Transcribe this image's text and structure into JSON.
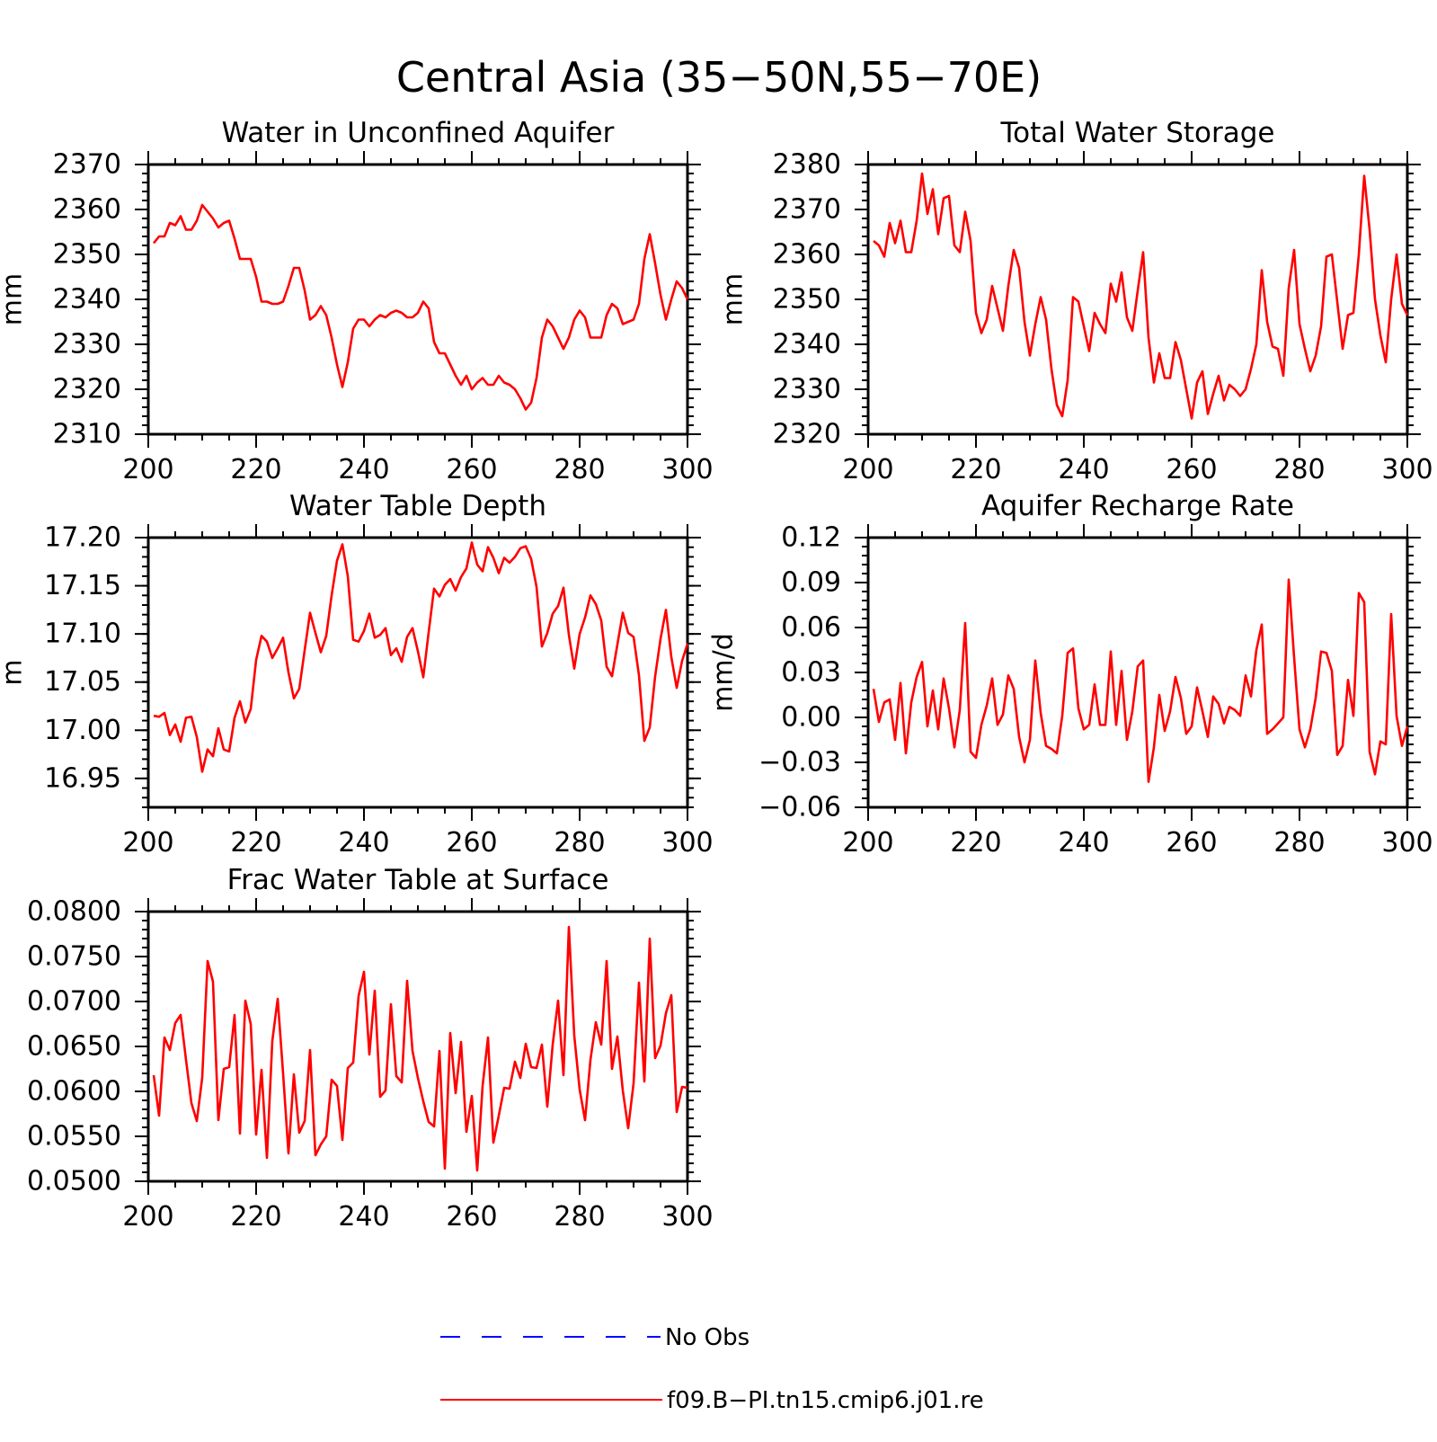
{
  "title": "Central Asia (35−50N,55−70E)",
  "legend": {
    "items": [
      {
        "label": "No Obs",
        "color": "#0000ff",
        "style": "dashed"
      },
      {
        "label": "f09.B−PI.tn15.cmip6.j01.re",
        "color": "#ff0000",
        "style": "solid"
      }
    ]
  },
  "colors": {
    "series": "#ff0000",
    "axes": "#000000",
    "no_obs": "#0000ff"
  },
  "chart_data": [
    {
      "type": "line",
      "title": "Water in Unconfined Aquifer",
      "xlabel": "",
      "ylabel": "mm",
      "xlim": [
        200,
        300
      ],
      "ylim": [
        2310,
        2370
      ],
      "xticks": [
        200,
        220,
        240,
        260,
        280,
        300
      ],
      "xtick_labels": [
        "200",
        "220",
        "240",
        "260",
        "280",
        "300"
      ],
      "yticks": [
        2310,
        2320,
        2330,
        2340,
        2350,
        2360,
        2370
      ],
      "ytick_labels": [
        "2310",
        "2320",
        "2330",
        "2340",
        "2350",
        "2360",
        "2370"
      ],
      "x_start": 201,
      "series": [
        {
          "name": "f09.B−PI.tn15.cmip6.j01.re",
          "values": [
            2352.5,
            2354,
            2354,
            2357,
            2356.5,
            2358.5,
            2355.5,
            2355.5,
            2357.5,
            2361,
            2359.5,
            2358,
            2356,
            2357,
            2357.5,
            2353.5,
            2349,
            2349,
            2349,
            2345,
            2339.5,
            2339.5,
            2339,
            2339,
            2339.5,
            2343,
            2347,
            2347,
            2342,
            2335.5,
            2336.5,
            2338.5,
            2336.5,
            2331.5,
            2325.5,
            2320.5,
            2326,
            2333.5,
            2335.5,
            2335.5,
            2334,
            2335.5,
            2336.5,
            2336,
            2337,
            2337.5,
            2337,
            2336,
            2336,
            2337,
            2339.5,
            2338,
            2330.5,
            2328,
            2328,
            2325.5,
            2323,
            2321,
            2323,
            2320,
            2321.5,
            2322.5,
            2321,
            2321,
            2323,
            2321.5,
            2321,
            2320,
            2318,
            2315.5,
            2317,
            2322.5,
            2331.5,
            2335.5,
            2334,
            2331.5,
            2329,
            2331.5,
            2335.5,
            2337.5,
            2336,
            2331.5,
            2331.5,
            2331.5,
            2336.5,
            2339,
            2338,
            2334.5,
            2335,
            2335.5,
            2339,
            2349,
            2354.5,
            2348,
            2341,
            2335.5,
            2340,
            2344,
            2342.5,
            2340
          ]
        }
      ]
    },
    {
      "type": "line",
      "title": "Total Water Storage",
      "xlabel": "",
      "ylabel": "mm",
      "xlim": [
        200,
        300
      ],
      "ylim": [
        2320,
        2380
      ],
      "xticks": [
        200,
        220,
        240,
        260,
        280,
        300
      ],
      "xtick_labels": [
        "200",
        "220",
        "240",
        "260",
        "280",
        "300"
      ],
      "yticks": [
        2320,
        2330,
        2340,
        2350,
        2360,
        2370,
        2380
      ],
      "ytick_labels": [
        "2320",
        "2330",
        "2340",
        "2350",
        "2360",
        "2370",
        "2380"
      ],
      "x_start": 201,
      "series": [
        {
          "name": "f09.B−PI.tn15.cmip6.j01.re",
          "values": [
            2363,
            2362,
            2359.5,
            2367,
            2362.5,
            2367.5,
            2360.5,
            2360.5,
            2367.5,
            2378,
            2369,
            2374.5,
            2364.5,
            2372.5,
            2373,
            2362,
            2360.5,
            2369.5,
            2363,
            2347,
            2342.5,
            2345.5,
            2353,
            2348,
            2343,
            2353,
            2361,
            2357,
            2345,
            2337.5,
            2344.5,
            2350.5,
            2345.5,
            2334.5,
            2326.5,
            2324,
            2332,
            2350.5,
            2349.5,
            2344,
            2338.5,
            2347,
            2344.5,
            2342.5,
            2353.5,
            2349.5,
            2356,
            2346,
            2343,
            2352,
            2360.5,
            2341.5,
            2331.5,
            2338,
            2332.5,
            2332.5,
            2340.5,
            2336.5,
            2330,
            2323.5,
            2331.5,
            2334,
            2324.5,
            2329,
            2333,
            2327.5,
            2331,
            2330,
            2328.5,
            2330,
            2334.5,
            2340,
            2356.5,
            2345,
            2339.5,
            2339,
            2333,
            2352.5,
            2361,
            2344.5,
            2339,
            2334,
            2337.5,
            2344,
            2359.5,
            2360,
            2349.5,
            2339,
            2346.5,
            2347,
            2360,
            2377.5,
            2365.5,
            2350,
            2342,
            2336,
            2350,
            2360,
            2349,
            2346.5
          ]
        }
      ]
    },
    {
      "type": "line",
      "title": "Water Table Depth",
      "xlabel": "",
      "ylabel": "m",
      "xlim": [
        200,
        300
      ],
      "ylim": [
        16.92,
        17.2
      ],
      "xticks": [
        200,
        220,
        240,
        260,
        280,
        300
      ],
      "xtick_labels": [
        "200",
        "220",
        "240",
        "260",
        "280",
        "300"
      ],
      "yticks": [
        16.95,
        17.0,
        17.05,
        17.1,
        17.15,
        17.2
      ],
      "ytick_labels": [
        "16.95",
        "17.00",
        "17.05",
        "17.10",
        "17.15",
        "17.20"
      ],
      "x_start": 201,
      "series": [
        {
          "name": "f09.B−PI.tn15.cmip6.j01.re",
          "values": [
            17.015,
            17.014,
            17.018,
            16.995,
            17.006,
            16.988,
            17.013,
            17.014,
            16.993,
            16.957,
            16.98,
            16.973,
            17.002,
            16.98,
            16.978,
            17.013,
            17.03,
            17.008,
            17.022,
            17.073,
            17.098,
            17.092,
            17.075,
            17.085,
            17.096,
            17.06,
            17.033,
            17.043,
            17.083,
            17.122,
            17.101,
            17.081,
            17.098,
            17.14,
            17.176,
            17.193,
            17.16,
            17.094,
            17.092,
            17.103,
            17.121,
            17.096,
            17.099,
            17.106,
            17.078,
            17.085,
            17.071,
            17.097,
            17.106,
            17.082,
            17.055,
            17.102,
            17.147,
            17.139,
            17.151,
            17.157,
            17.145,
            17.159,
            17.168,
            17.195,
            17.172,
            17.165,
            17.19,
            17.179,
            17.163,
            17.179,
            17.174,
            17.18,
            17.189,
            17.191,
            17.178,
            17.149,
            17.087,
            17.101,
            17.121,
            17.129,
            17.148,
            17.099,
            17.064,
            17.1,
            17.117,
            17.14,
            17.131,
            17.114,
            17.066,
            17.056,
            17.089,
            17.122,
            17.101,
            17.097,
            17.057,
            16.989,
            17.003,
            17.056,
            17.095,
            17.125,
            17.076,
            17.044,
            17.072,
            17.09
          ]
        }
      ]
    },
    {
      "type": "line",
      "title": "Aquifer Recharge Rate",
      "xlabel": "",
      "ylabel": "mm/d",
      "xlim": [
        200,
        300
      ],
      "ylim": [
        -0.06,
        0.12
      ],
      "xticks": [
        200,
        220,
        240,
        260,
        280,
        300
      ],
      "xtick_labels": [
        "200",
        "220",
        "240",
        "260",
        "280",
        "300"
      ],
      "yticks": [
        -0.06,
        -0.03,
        0.0,
        0.03,
        0.06,
        0.09,
        0.12
      ],
      "ytick_labels": [
        "−0.06",
        "−0.03",
        "0.00",
        "0.03",
        "0.06",
        "0.09",
        "0.12"
      ],
      "x_start": 201,
      "series": [
        {
          "name": "f09.B−PI.tn15.cmip6.j01.re",
          "values": [
            0.019,
            -0.003,
            0.01,
            0.012,
            -0.015,
            0.023,
            -0.024,
            0.01,
            0.027,
            0.037,
            -0.006,
            0.018,
            -0.008,
            0.026,
            0.006,
            -0.02,
            0.005,
            0.063,
            -0.023,
            -0.027,
            -0.005,
            0.008,
            0.026,
            -0.005,
            0.002,
            0.028,
            0.019,
            -0.013,
            -0.03,
            -0.015,
            0.038,
            0.003,
            -0.019,
            -0.021,
            -0.024,
            0.001,
            0.043,
            0.046,
            0.006,
            -0.008,
            -0.005,
            0.022,
            -0.005,
            -0.005,
            0.044,
            -0.005,
            0.031,
            -0.015,
            0.004,
            0.034,
            0.038,
            -0.043,
            -0.02,
            0.015,
            -0.009,
            0.004,
            0.027,
            0.013,
            -0.011,
            -0.006,
            0.02,
            0.004,
            -0.013,
            0.014,
            0.009,
            -0.004,
            0.007,
            0.005,
            0.001,
            0.028,
            0.014,
            0.045,
            0.062,
            -0.011,
            -0.008,
            -0.004,
            0.0,
            0.092,
            0.04,
            -0.008,
            -0.02,
            -0.008,
            0.013,
            0.044,
            0.043,
            0.031,
            -0.025,
            -0.019,
            0.025,
            0.001,
            0.083,
            0.077,
            -0.023,
            -0.038,
            -0.016,
            -0.018,
            0.069,
            0.001,
            -0.019,
            -0.006
          ]
        }
      ]
    },
    {
      "type": "line",
      "title": "Frac Water Table at Surface",
      "xlabel": "",
      "ylabel": "",
      "xlim": [
        200,
        300
      ],
      "ylim": [
        0.05,
        0.08
      ],
      "xticks": [
        200,
        220,
        240,
        260,
        280,
        300
      ],
      "xtick_labels": [
        "200",
        "220",
        "240",
        "260",
        "280",
        "300"
      ],
      "yticks": [
        0.05,
        0.055,
        0.06,
        0.065,
        0.07,
        0.075,
        0.08
      ],
      "ytick_labels": [
        "0.0500",
        "0.0550",
        "0.0600",
        "0.0650",
        "0.0700",
        "0.0750",
        "0.0800"
      ],
      "x_start": 201,
      "series": [
        {
          "name": "f09.B−PI.tn15.cmip6.j01.re",
          "values": [
            0.0618,
            0.0573,
            0.066,
            0.0646,
            0.0676,
            0.0685,
            0.0635,
            0.0587,
            0.0567,
            0.0615,
            0.0745,
            0.0722,
            0.0568,
            0.0625,
            0.0627,
            0.0685,
            0.0553,
            0.0701,
            0.0675,
            0.0552,
            0.0624,
            0.0526,
            0.0656,
            0.0703,
            0.062,
            0.0531,
            0.0619,
            0.0554,
            0.0567,
            0.0646,
            0.0529,
            0.0541,
            0.055,
            0.0613,
            0.0606,
            0.0546,
            0.0626,
            0.0632,
            0.0706,
            0.0733,
            0.0641,
            0.0712,
            0.0594,
            0.0601,
            0.0697,
            0.0617,
            0.061,
            0.0723,
            0.0645,
            0.0615,
            0.0589,
            0.0566,
            0.0561,
            0.0645,
            0.0514,
            0.0665,
            0.0598,
            0.0655,
            0.0555,
            0.0595,
            0.0512,
            0.0606,
            0.066,
            0.0543,
            0.0573,
            0.0604,
            0.0603,
            0.0633,
            0.0615,
            0.0653,
            0.0627,
            0.0626,
            0.0652,
            0.0583,
            0.0652,
            0.0701,
            0.0618,
            0.0783,
            0.0662,
            0.0602,
            0.0568,
            0.0635,
            0.0677,
            0.0652,
            0.0745,
            0.0625,
            0.0661,
            0.0601,
            0.0559,
            0.0609,
            0.0721,
            0.0611,
            0.077,
            0.0637,
            0.0651,
            0.0687,
            0.0707,
            0.0577,
            0.0605,
            0.0604
          ]
        }
      ]
    }
  ]
}
